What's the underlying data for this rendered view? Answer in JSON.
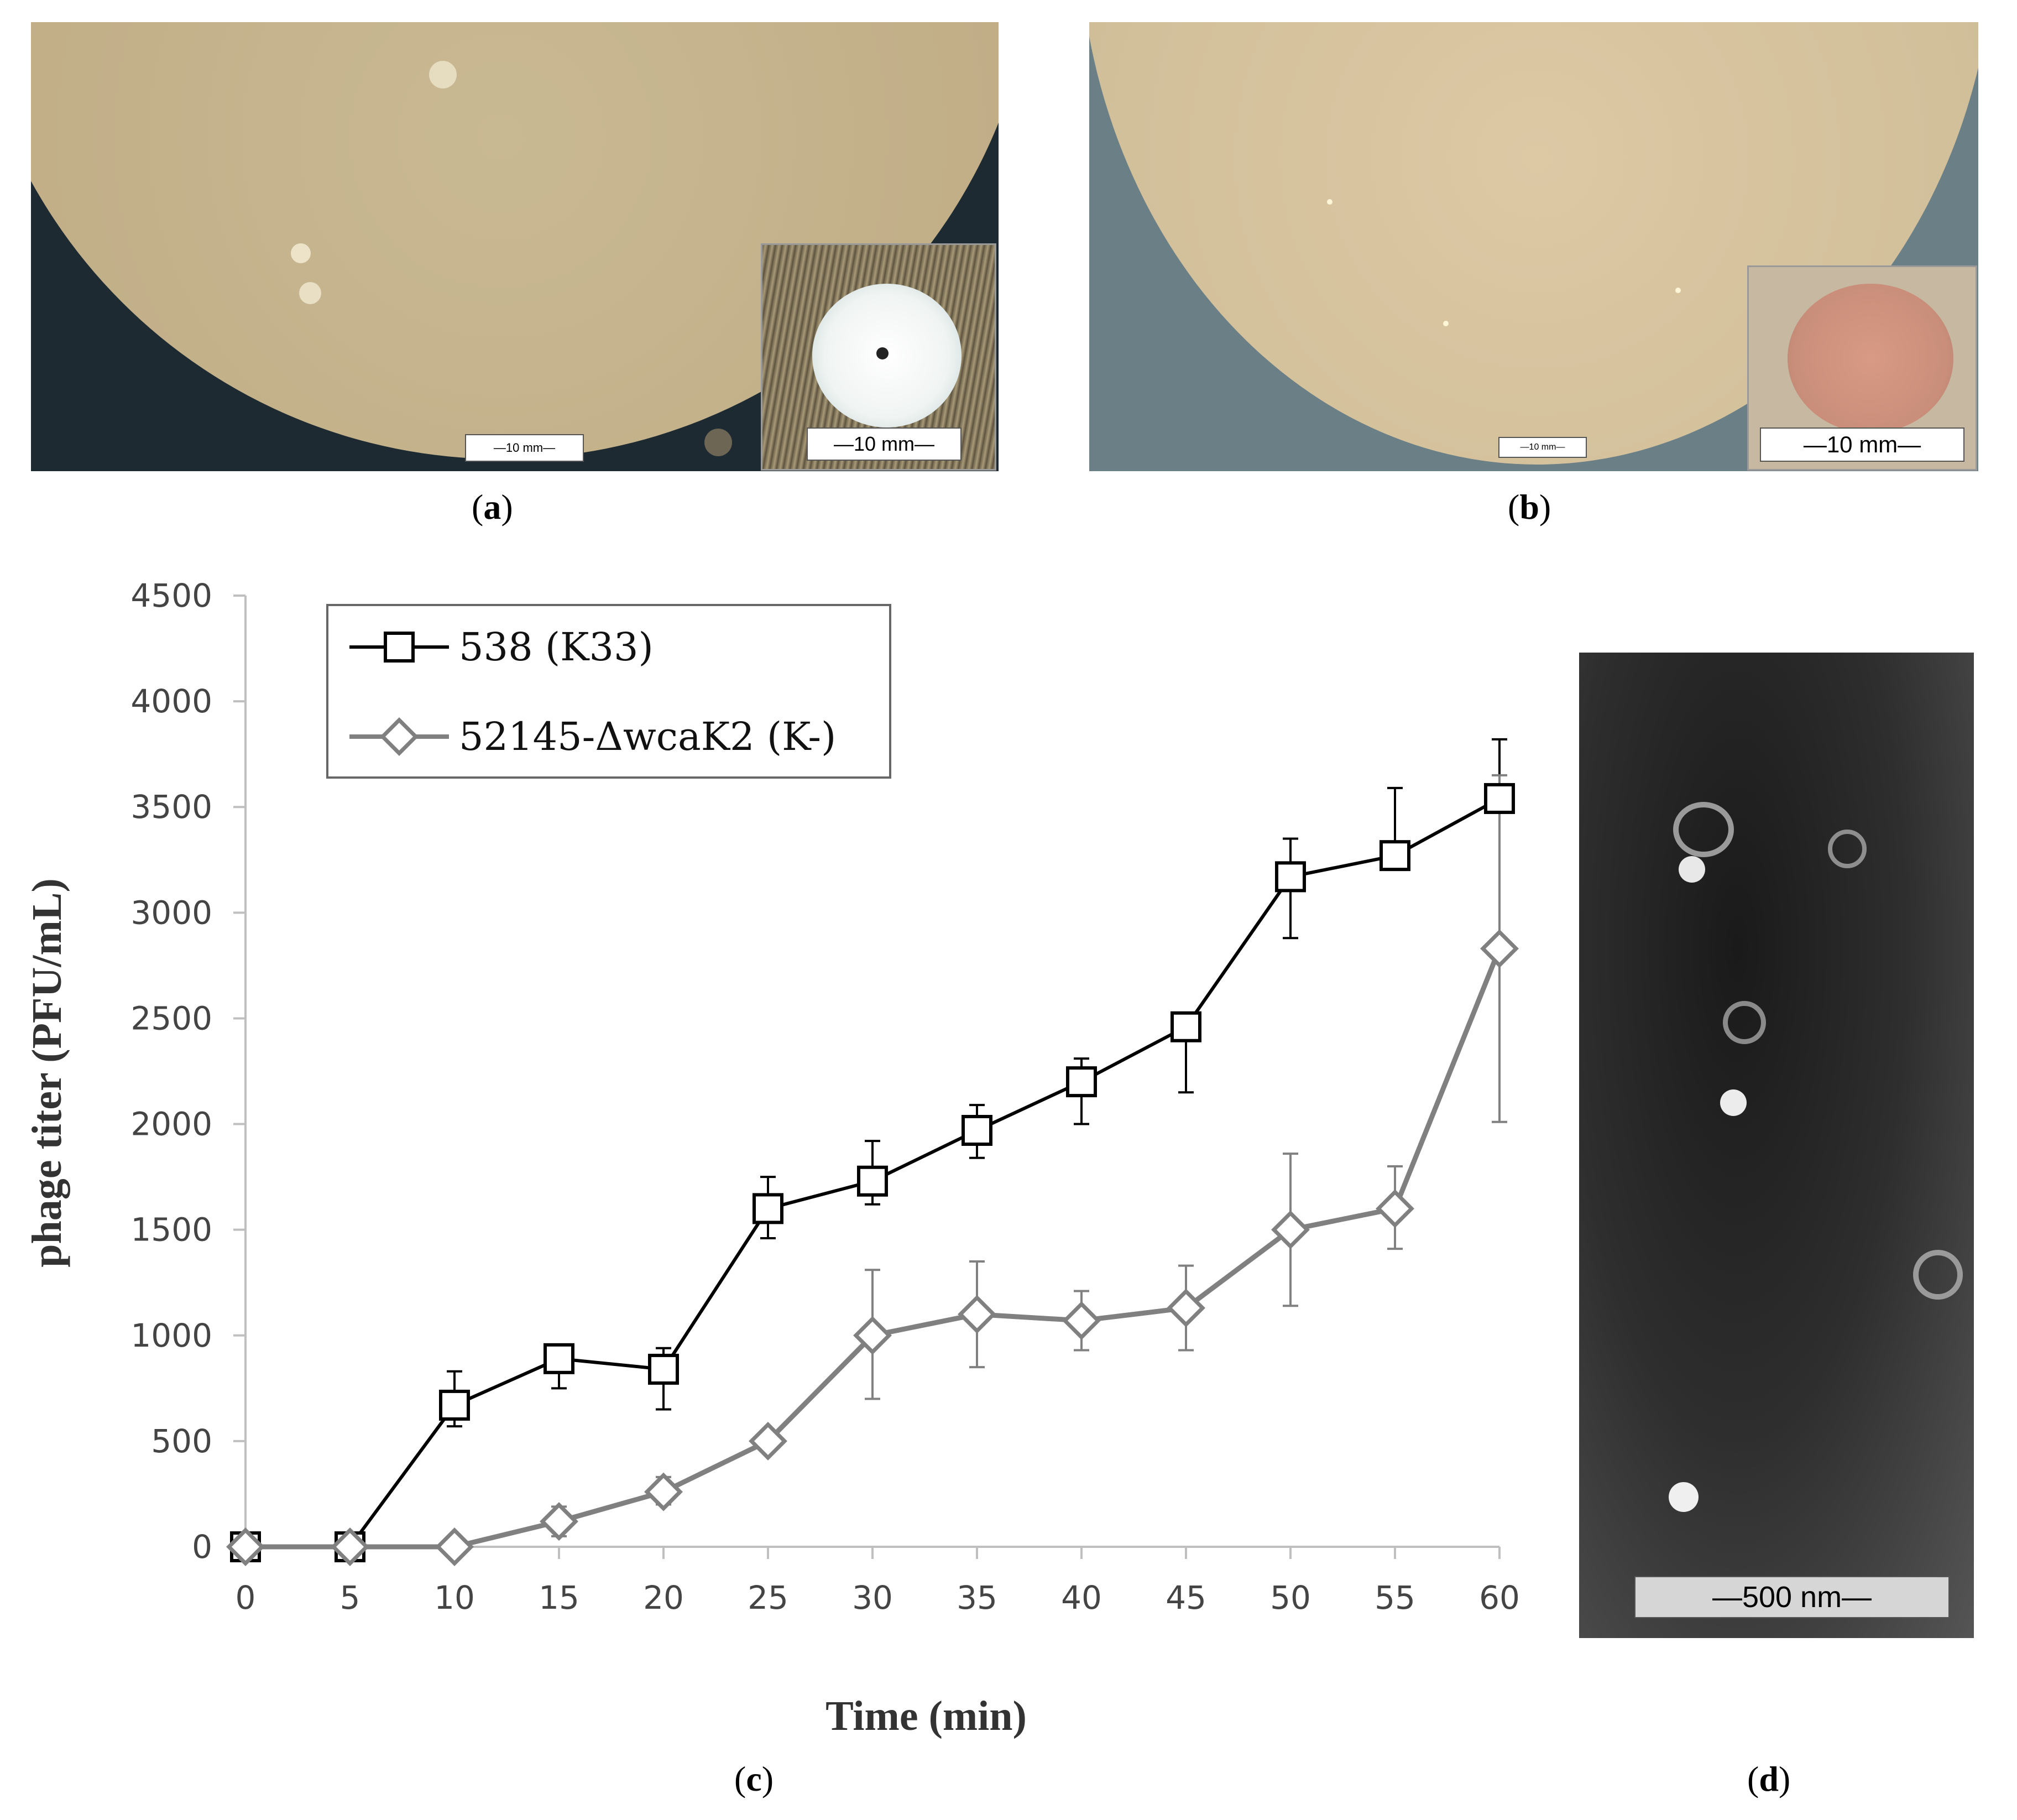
{
  "panels": {
    "a": {
      "label_open": "(",
      "label_letter": "a",
      "label_close": ")",
      "scale_main": "—10 mm—",
      "scale_inset": "—10 mm—"
    },
    "b": {
      "label_open": "(",
      "label_letter": "b",
      "label_close": ")",
      "scale_main": "—10 mm—",
      "scale_inset": "—10 mm—"
    },
    "c": {
      "label_open": "(",
      "label_letter": "c",
      "label_close": ")"
    },
    "d": {
      "label_open": "(",
      "label_letter": "d",
      "label_close": ")",
      "scale": "—500 nm—"
    }
  },
  "chart_data": {
    "type": "line",
    "xlabel": "Time (min)",
    "ylabel": "phage titer (PFU/mL)",
    "x": [
      0,
      5,
      10,
      15,
      20,
      25,
      30,
      35,
      40,
      45,
      50,
      55,
      60
    ],
    "xlim": [
      0,
      60
    ],
    "ylim": [
      0,
      4500
    ],
    "xticks": [
      0,
      5,
      10,
      15,
      20,
      25,
      30,
      35,
      40,
      45,
      50,
      55,
      60
    ],
    "yticks": [
      0,
      500,
      1000,
      1500,
      2000,
      2500,
      3000,
      3500,
      4000,
      4500
    ],
    "grid": false,
    "legend_position": "top-left",
    "series": [
      {
        "name": "538 (K33)",
        "marker": "square",
        "color": "#000000",
        "values": [
          0,
          0,
          670,
          890,
          840,
          1600,
          1730,
          1970,
          2200,
          2460,
          3170,
          3270,
          3540
        ],
        "err_lower": [
          0,
          0,
          100,
          140,
          190,
          140,
          110,
          130,
          200,
          310,
          290,
          0,
          0
        ],
        "err_upper": [
          0,
          0,
          160,
          0,
          100,
          150,
          190,
          120,
          110,
          0,
          180,
          320,
          280
        ]
      },
      {
        "name": "52145-ΔwcaK2 (K-)",
        "marker": "diamond",
        "color": "#808080",
        "values": [
          0,
          0,
          0,
          120,
          260,
          500,
          1000,
          1100,
          1070,
          1130,
          1500,
          1600,
          2830
        ],
        "err_lower": [
          0,
          0,
          0,
          70,
          60,
          0,
          300,
          250,
          140,
          200,
          360,
          190,
          820
        ],
        "err_upper": [
          0,
          0,
          0,
          70,
          70,
          0,
          310,
          250,
          140,
          200,
          360,
          200,
          820
        ]
      }
    ]
  }
}
